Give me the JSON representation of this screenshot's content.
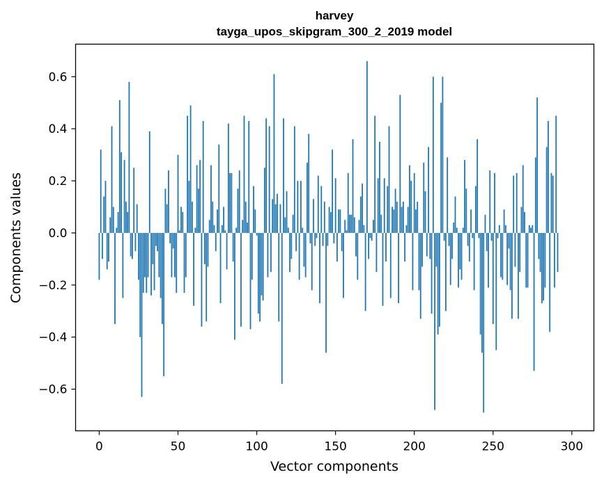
{
  "chart_data": {
    "type": "bar",
    "title": "harvey",
    "subtitle": "tayga_upos_skipgram_300_2_2019 model",
    "xlabel": "Vector components",
    "ylabel": "Components values",
    "xlim": [
      -15,
      314
    ],
    "ylim": [
      -0.76,
      0.725
    ],
    "x_ticks": [
      0,
      50,
      100,
      150,
      200,
      250,
      300
    ],
    "y_ticks": [
      -0.6,
      -0.4,
      -0.2,
      0.0,
      0.2,
      0.4,
      0.6
    ],
    "x_tick_labels": [
      "0",
      "50",
      "100",
      "150",
      "200",
      "250",
      "300"
    ],
    "y_tick_labels": [
      "−0.6",
      "−0.4",
      "−0.2",
      "0.0",
      "0.2",
      "0.4",
      "0.6"
    ],
    "bar_color": "#1f77b4",
    "values": [
      -0.18,
      0.32,
      -0.1,
      0.14,
      0.2,
      -0.14,
      -0.11,
      0.06,
      0.41,
      0.1,
      -0.35,
      0.02,
      0.08,
      0.51,
      0.31,
      -0.25,
      0.28,
      0.12,
      0.08,
      0.58,
      -0.09,
      -0.1,
      0.25,
      -0.07,
      0.11,
      -0.18,
      -0.4,
      -0.63,
      -0.23,
      -0.17,
      -0.23,
      -0.17,
      0.39,
      -0.24,
      -0.12,
      -0.22,
      -0.05,
      -0.07,
      -0.17,
      -0.25,
      -0.35,
      -0.55,
      0.17,
      0.11,
      0.24,
      -0.04,
      -0.17,
      -0.06,
      -0.17,
      -0.23,
      0.3,
      0.01,
      0.1,
      0.08,
      -0.23,
      -0.17,
      0.45,
      0.2,
      0.49,
      0.12,
      -0.28,
      0.02,
      0.26,
      0.17,
      0.28,
      -0.36,
      0.43,
      -0.12,
      -0.34,
      -0.13,
      0.05,
      0.26,
      0.12,
      0.03,
      -0.07,
      0.09,
      0.34,
      -0.27,
      0.03,
      0.1,
      0.01,
      -0.14,
      0.42,
      0.23,
      0.23,
      -0.11,
      -0.41,
      0.02,
      0.17,
      0.24,
      -0.36,
      0.05,
      0.45,
      0.12,
      0.04,
      0.43,
      -0.37,
      -0.18,
      0.18,
      0.09,
      -0.01,
      -0.31,
      -0.34,
      -0.24,
      -0.26,
      0.25,
      0.44,
      -0.17,
      0.41,
      -0.15,
      0.13,
      0.61,
      0.11,
      0.15,
      -0.34,
      0.11,
      -0.58,
      0.44,
      0.06,
      0.16,
      0.02,
      -0.15,
      -0.1,
      0.07,
      0.41,
      -0.07,
      0.2,
      -0.18,
      0.2,
      0.02,
      -0.13,
      -0.17,
      0.27,
      0.38,
      -0.04,
      -0.22,
      0.13,
      -0.05,
      -0.02,
      0.22,
      -0.27,
      0.18,
      -0.05,
      0.12,
      -0.46,
      -0.05,
      0.1,
      0.08,
      0.32,
      -0.04,
      0.21,
      -0.11,
      0.09,
      0.09,
      -0.07,
      -0.25,
      0.05,
      0.01,
      0.23,
      0.07,
      0.07,
      0.36,
      0.06,
      -0.09,
      -0.18,
      0.05,
      0.14,
      0.19,
      0.03,
      -0.3,
      0.66,
      -0.1,
      -0.02,
      -0.03,
      0.05,
      0.45,
      -0.15,
      0.21,
      0.35,
      0.07,
      -0.28,
      0.21,
      -0.11,
      0.18,
      0.41,
      -0.25,
      0.1,
      0.09,
      0.17,
      0.12,
      -0.27,
      0.53,
      0.1,
      0.12,
      -0.11,
      0.03,
      0.1,
      0.26,
      0.2,
      -0.22,
      0.23,
      0.09,
      0.12,
      -0.22,
      -0.33,
      -0.13,
      0.27,
      0.16,
      -0.09,
      0.33,
      -0.1,
      -0.31,
      0.6,
      -0.68,
      -0.13,
      -0.39,
      -0.36,
      0.5,
      0.6,
      -0.03,
      -0.3,
      0.29,
      -0.05,
      -0.2,
      -0.1,
      0.04,
      0.14,
      0.02,
      -0.21,
      -0.14,
      -0.18,
      0.02,
      0.28,
      0.17,
      -0.05,
      -0.11,
      0.09,
      -0.02,
      -0.22,
      0.18,
      0.36,
      -0.02,
      -0.39,
      -0.46,
      -0.69,
      0.07,
      -0.07,
      -0.21,
      0.24,
      -0.03,
      -0.35,
      0.23,
      -0.45,
      -0.02,
      0.03,
      -0.17,
      -0.18,
      0.09,
      0.03,
      -0.2,
      -0.06,
      -0.22,
      -0.33,
      0.22,
      -0.13,
      0.23,
      -0.33,
      -0.15,
      0.1,
      0.26,
      0.08,
      -0.21,
      -0.21,
      0.03,
      0.02,
      0.03,
      -0.53,
      0.29,
      0.52,
      -0.1,
      -0.15,
      -0.27,
      -0.26,
      -0.21,
      0.33,
      0.43,
      -0.38,
      0.23,
      0.22,
      -0.21,
      0.45,
      -0.15
    ]
  }
}
